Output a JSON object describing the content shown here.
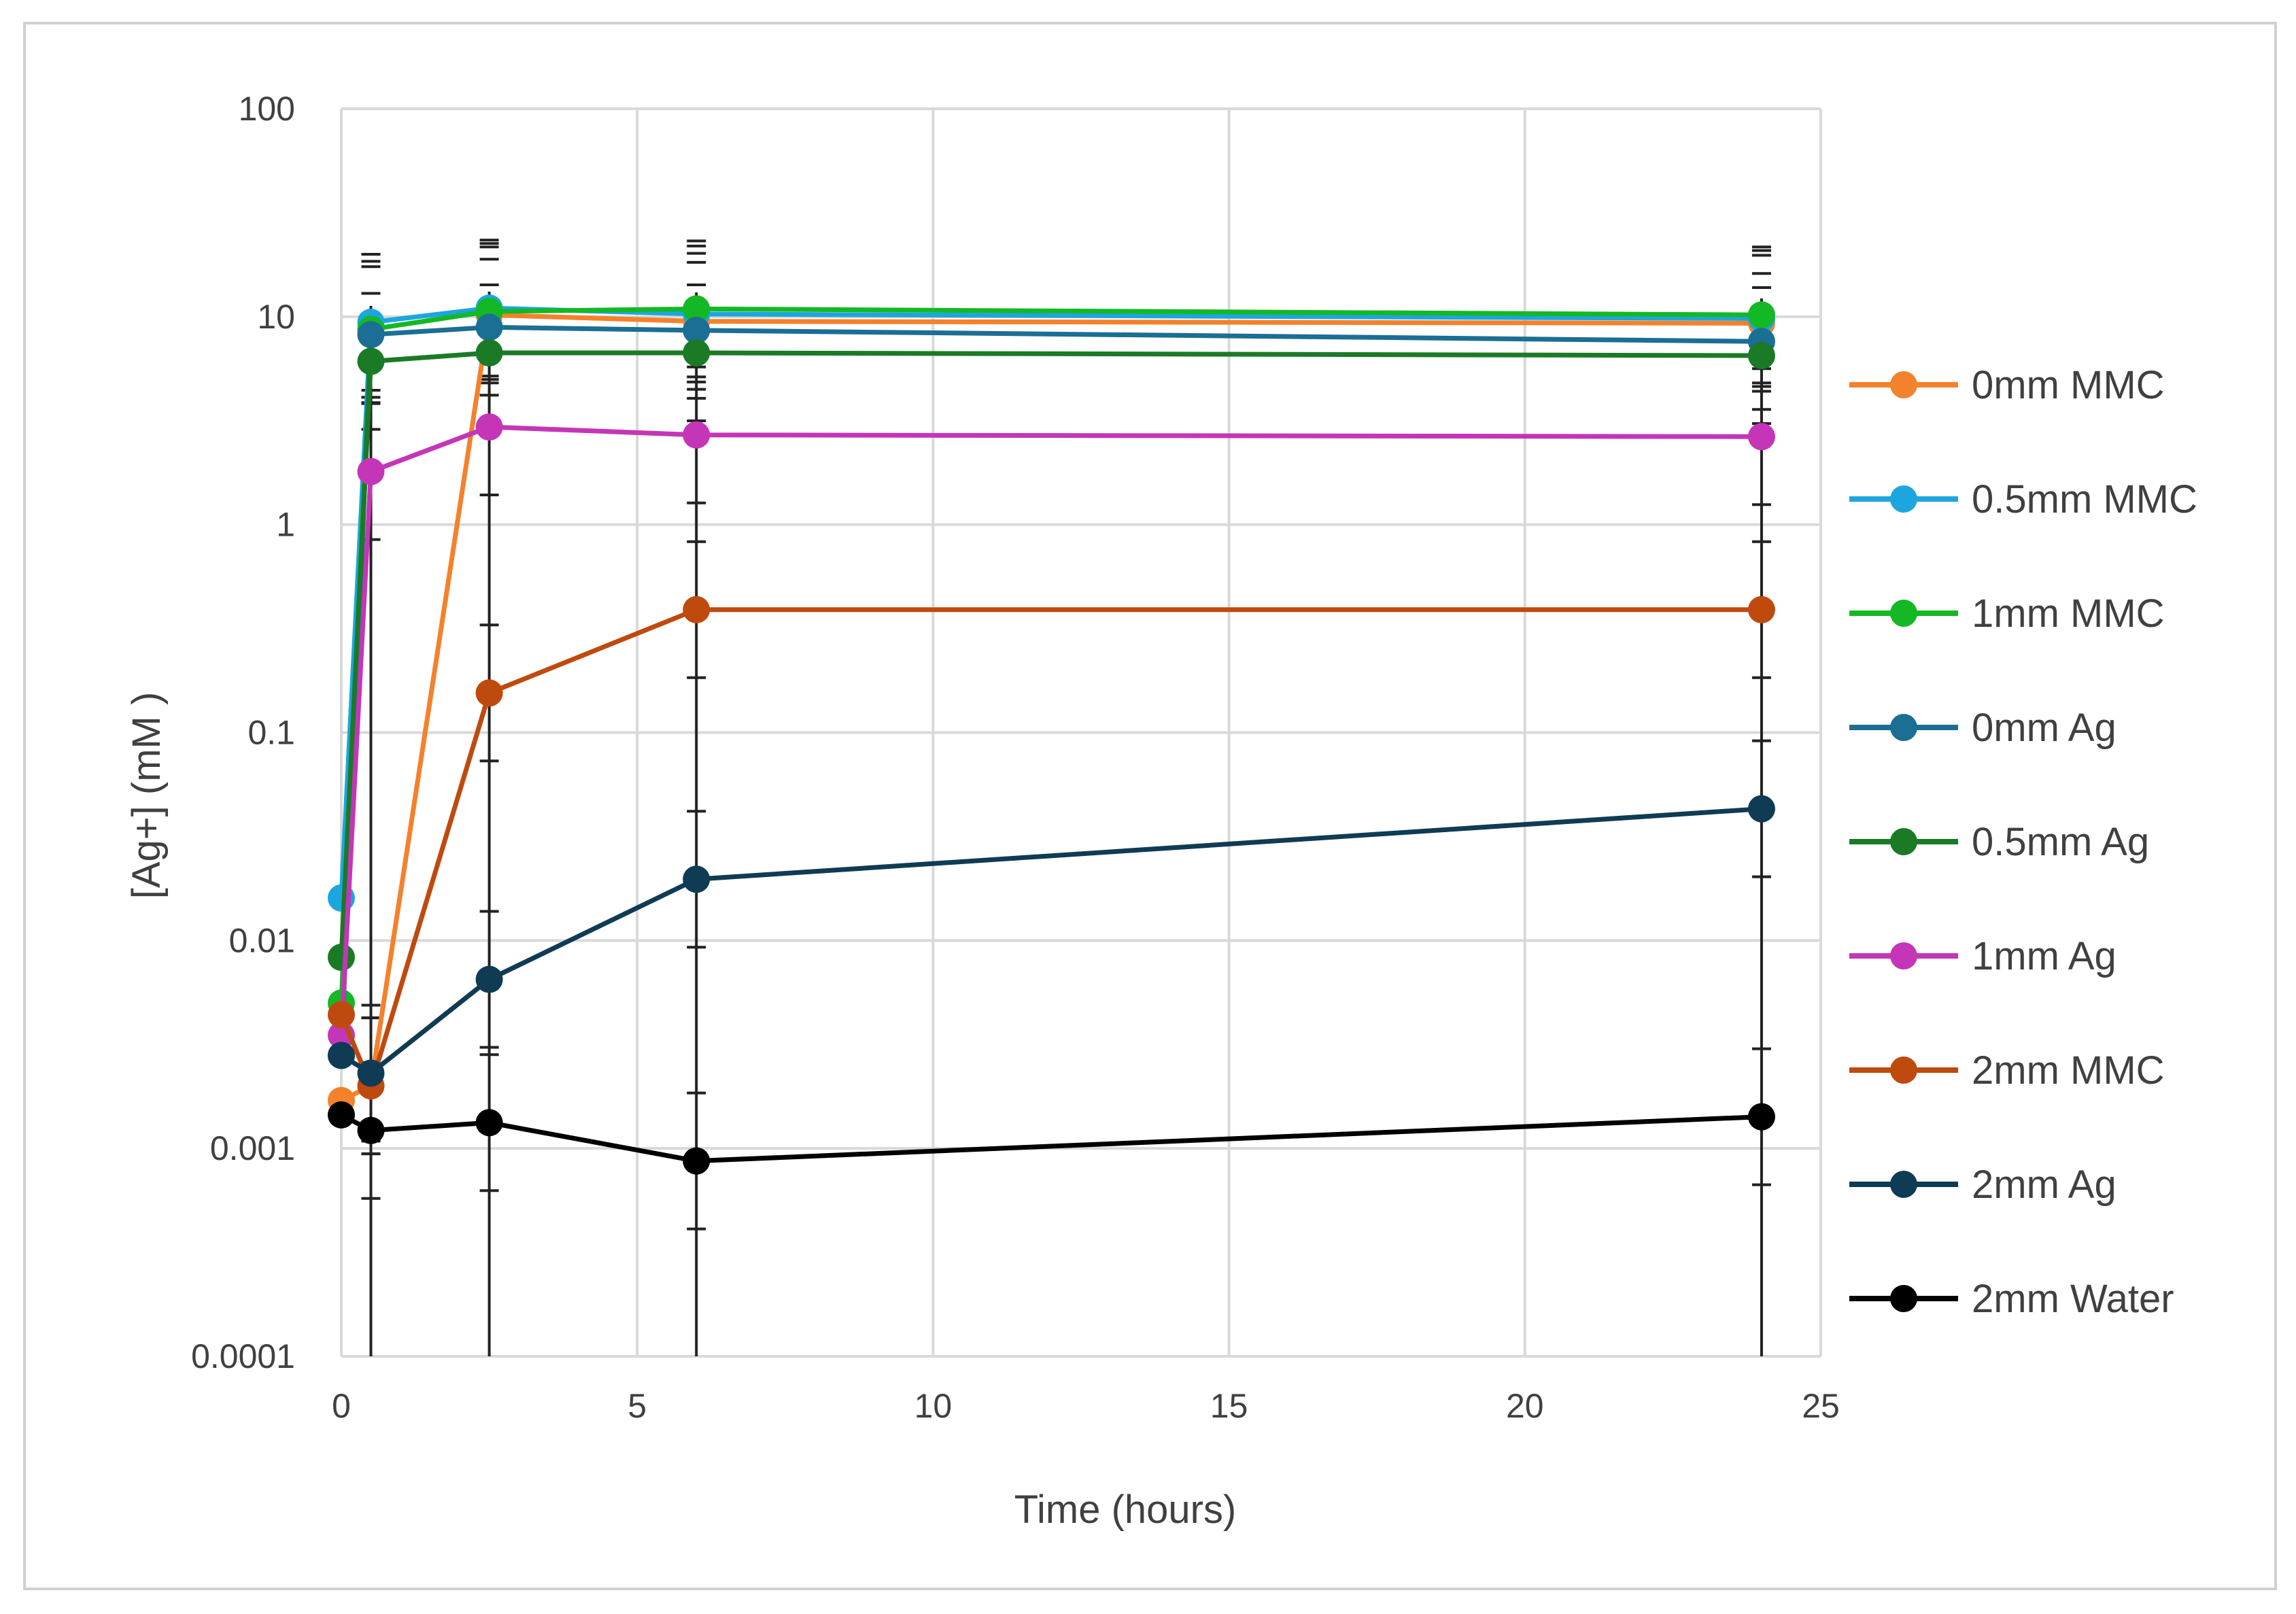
{
  "chart_data": {
    "type": "line",
    "title": "",
    "xlabel": "Time (hours)",
    "ylabel": "[Ag+] (mM )",
    "xlim": [
      0,
      25
    ],
    "ylim": [
      0.0001,
      100
    ],
    "yscale": "log",
    "x_ticks": [
      "0",
      "5",
      "10",
      "15",
      "20",
      "25"
    ],
    "y_ticks": [
      "0.0001",
      "0.001",
      "0.01",
      "0.1",
      "1",
      "10",
      "100"
    ],
    "grid": true,
    "legend_position": "right",
    "x": [
      0,
      0.5,
      2.5,
      6,
      24
    ],
    "series": [
      {
        "name": "0mm MMC",
        "color": "#F4812C",
        "values": [
          0.0017,
          0.002,
          10.2,
          9.5,
          9.3
        ]
      },
      {
        "name": "0.5mm MMC",
        "color": "#1CA6DE",
        "values": [
          0.016,
          9.4,
          11.0,
          10.3,
          9.8
        ]
      },
      {
        "name": "1mm MMC",
        "color": "#14B825",
        "values": [
          0.005,
          8.7,
          10.6,
          10.9,
          10.2
        ]
      },
      {
        "name": "0mm Ag",
        "color": "#1B6E94",
        "values": [
          0.0028,
          8.2,
          8.9,
          8.6,
          7.6
        ]
      },
      {
        "name": "0.5mm Ag",
        "color": "#1A7A26",
        "values": [
          0.0083,
          6.1,
          6.7,
          6.7,
          6.5
        ]
      },
      {
        "name": "1mm Ag",
        "color": "#C535B8",
        "values": [
          0.0035,
          1.8,
          2.95,
          2.7,
          2.65
        ]
      },
      {
        "name": "2mm MMC",
        "color": "#BF4A0E",
        "values": [
          0.0044,
          0.002,
          0.155,
          0.39,
          0.39
        ]
      },
      {
        "name": "2mm Ag",
        "color": "#0F3B55",
        "values": [
          0.0028,
          0.0023,
          0.0065,
          0.0197,
          0.043
        ]
      },
      {
        "name": "2mm Water",
        "color": "#000000",
        "values": [
          0.00145,
          0.00122,
          0.00133,
          0.00087,
          0.00142
        ]
      }
    ]
  }
}
